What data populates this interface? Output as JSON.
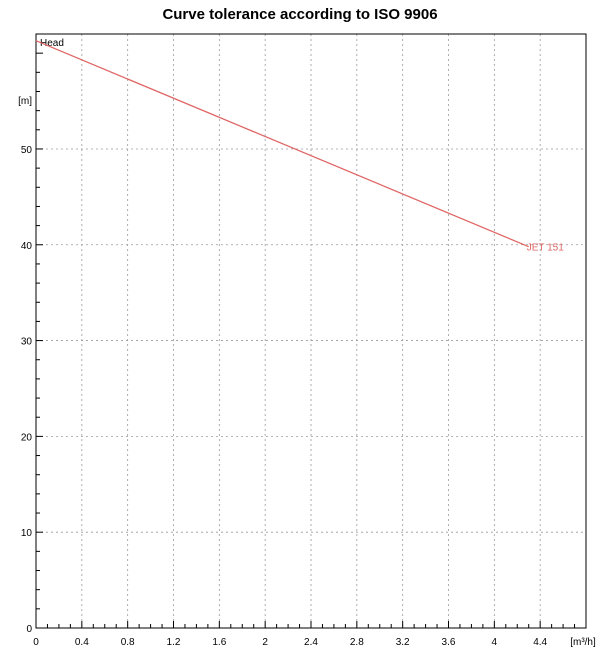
{
  "chart_data": {
    "type": "line",
    "title": "Curve tolerance according to ISO 9906",
    "ylabel": "Head",
    "yunit": "[m]",
    "xunit": "[m³/h]",
    "xlim": [
      0,
      4.8
    ],
    "ylim": [
      0,
      62
    ],
    "grid": true,
    "x_ticks": [
      0,
      0.4,
      0.8,
      1.2,
      1.6,
      2,
      2.4,
      2.8,
      3.2,
      3.6,
      4,
      4.4
    ],
    "x_tick_labels": [
      "0",
      "0.4",
      "0.8",
      "1.2",
      "1.6",
      "2",
      "2.4",
      "2.8",
      "3.2",
      "3.6",
      "4",
      "4.4"
    ],
    "y_ticks": [
      0,
      10,
      20,
      30,
      40,
      50
    ],
    "y_tick_labels": [
      "0",
      "10",
      "20",
      "30",
      "40",
      "50"
    ],
    "series": [
      {
        "name": "JET 151",
        "color": "#e06666",
        "x": [
          0,
          4.3
        ],
        "y": [
          61.3,
          39.8
        ]
      }
    ]
  }
}
